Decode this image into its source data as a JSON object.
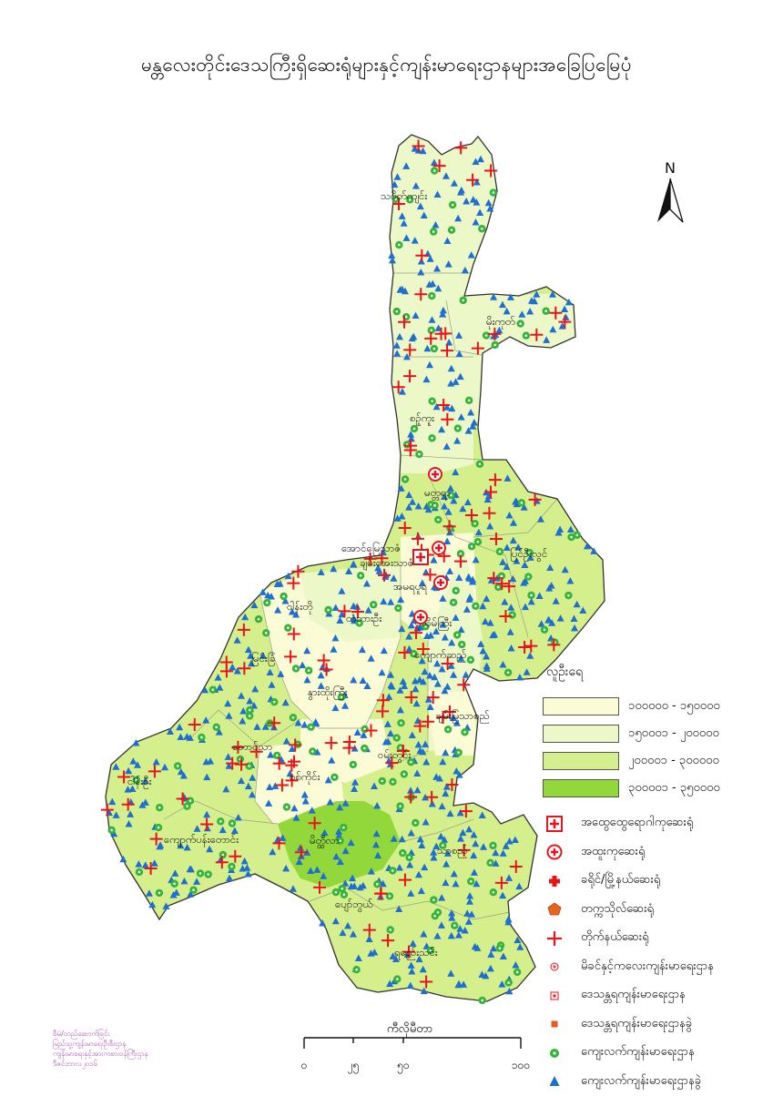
{
  "title": "မန္တလေးတိုင်းဒေသကြီးရှိဆေးရုံများနှင့်ကျန်းမာရေးဌာနများအခြေပြမြေပုံ",
  "north_arrow": {
    "label": "N",
    "icon": "north-arrow-icon"
  },
  "regions": [
    "သပိတ်ကျင်း",
    "မိုးကုတ်",
    "စဉ့်ကူး",
    "မတ္တရာ",
    "မြင်းခြံ",
    "ပြင်ဦးလွင်",
    "အောင်မြေသာဇံ",
    "မဟာအောင်မြေ",
    "ချမ်းအေးသာဇံ",
    "ချမ်းမြသာစည်",
    "ပုသိမ်ကြီး",
    "အမရပူရ",
    "စစ်ကိုင်း",
    "ဝါန်းတို",
    "မြင်းခြံ",
    "တံတားဦး",
    "ကျောက်ဆည်",
    "ဝမ်းတွင်း",
    "နွားထိုးကြီး",
    "တောင်သာ",
    "ငါန်းဦး",
    "သာစည်",
    "မိတ္ထီလာ",
    "ကျောက်ပန်းတောင်း",
    "ပျော်ဘွယ်",
    "ရမည်းသင်း",
    "မိုးကုတ်"
  ],
  "legend": {
    "population_title": "လူဦးရေ",
    "population_classes": [
      {
        "label": "၁၀၀၀၀၀ - ၁၅၀၀၀၀",
        "color": "#fbfbd6"
      },
      {
        "label": "၁၅၀၀၀၁ - ၂၀၀၀၀၀",
        "color": "#edf8c8"
      },
      {
        "label": "၂၀၀၀၀၁ - ၃၀၀၀၀၀",
        "color": "#d4ef8c"
      },
      {
        "label": "၃၀၀၀၀၁ - ၃၅၀၀၀၀",
        "color": "#92d83a"
      }
    ],
    "symbols": [
      {
        "label": "အထွေထွေရောဂါကုဆေးရုံ",
        "icon": "general-hospital-icon"
      },
      {
        "label": "အထူးကုဆေးရုံ",
        "icon": "specialist-hospital-icon"
      },
      {
        "label": "ခရိုင်/မြို့နယ်ဆေးရုံ",
        "icon": "district-hospital-icon"
      },
      {
        "label": "တက္ကသိုလ်ဆေးရုံ",
        "icon": "university-hospital-icon"
      },
      {
        "label": "တိုက်နယ်ဆေးရုံ",
        "icon": "station-hospital-icon"
      },
      {
        "label": "မိခင်နှင့်ကလေးကျန်းမာရေးဌာန",
        "icon": "maternal-child-health-icon"
      },
      {
        "label": "ဒေသန္တရကျန်းမာရေးဌာန",
        "icon": "rural-health-center-icon"
      },
      {
        "label": "ဒေသန္တရကျန်းမာရေးဌာနခွဲ",
        "icon": "rural-health-subcenter-icon"
      },
      {
        "label": "ကျေးလက်ကျန်းမာရေးဌာန",
        "icon": "village-health-center-icon"
      },
      {
        "label": "ကျေးလက်ကျန်းမာရေးဌာနခွဲ",
        "icon": "village-health-subcenter-icon"
      }
    ]
  },
  "scale": {
    "unit": "ကီလိုမီတာ",
    "ticks": [
      "၀",
      "၂၅",
      "၅၀",
      "၁၀၀"
    ]
  },
  "credits": [
    "စီမံ/တည်ဆောက်ခြင်း",
    "မြည်သူ့ကျန်းမာရေးဦးစီးဌာန",
    "ကျန်းမာရေးနှင့်အားကစားဝန်ကြီးဌာန",
    "ဒီဇင်ဘာလ၂၀၁၆"
  ],
  "colors": {
    "hospital_red": "#e8141c",
    "health_green": "#34b53a",
    "subcenter_blue": "#1e6fd0"
  }
}
